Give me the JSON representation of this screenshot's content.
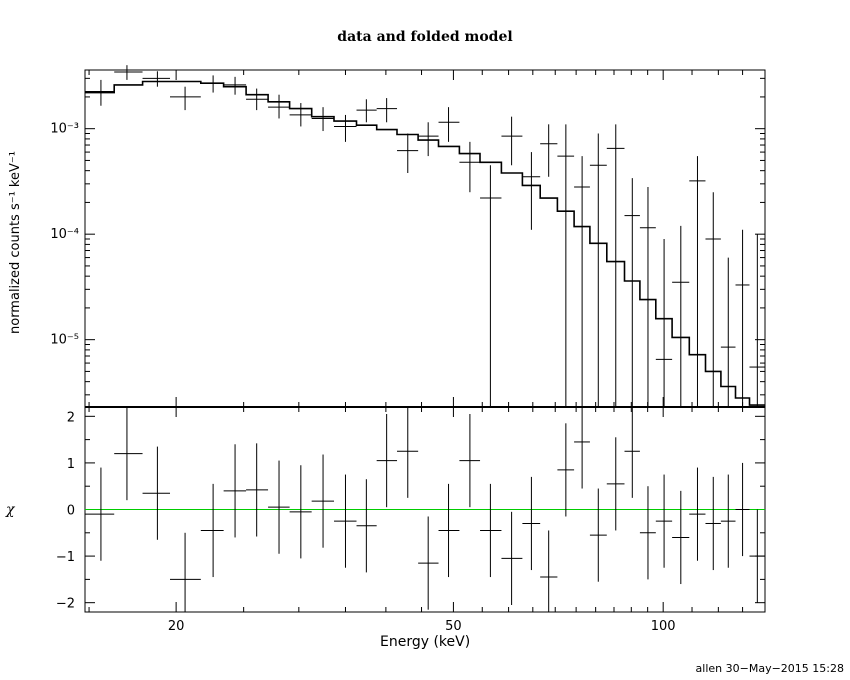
{
  "chart_data": [
    {
      "type": "line",
      "panel": "top",
      "title": "data and folded model",
      "ylabel": "normalized counts s⁻¹ keV⁻¹",
      "xscale": "log",
      "yscale": "log",
      "xlim": [
        14.8,
        140
      ],
      "ylim": [
        2.3e-06,
        0.0036
      ],
      "ytick_labels": [
        "10⁻⁵",
        "10⁻⁴",
        "10⁻³"
      ],
      "ytick_values": [
        1e-05,
        0.0001,
        0.001
      ],
      "series": [
        {
          "kind": "model-step",
          "color": "#000000",
          "edges": [
            14.8,
            16.3,
            17.9,
            19.6,
            21.7,
            23.4,
            25.2,
            27.1,
            29.1,
            31.3,
            33.7,
            36.3,
            38.8,
            41.5,
            44.5,
            47.6,
            51.0,
            54.6,
            58.6,
            62.8,
            66.6,
            70.5,
            74.5,
            78.5,
            83.0,
            88.0,
            92.6,
            97.6,
            103,
            109,
            115,
            121,
            127,
            133,
            140
          ],
          "values": [
            0.0022,
            0.0026,
            0.0028,
            0.0028,
            0.0027,
            0.0025,
            0.0021,
            0.0018,
            0.00155,
            0.0013,
            0.00118,
            0.00108,
            0.00098,
            0.00088,
            0.00078,
            0.00068,
            0.00058,
            0.00048,
            0.00038,
            0.00029,
            0.00022,
            0.000165,
            0.000118,
            8.2e-05,
            5.5e-05,
            3.6e-05,
            2.4e-05,
            1.58e-05,
            1.05e-05,
            7.2e-06,
            5e-06,
            3.6e-06,
            2.8e-06,
            2.4e-06
          ]
        },
        {
          "kind": "data-crosses",
          "color": "#000000",
          "points": [
            {
              "x": 15.6,
              "y": 0.00225,
              "ylo": 0.00165,
              "yhi": 0.0029
            },
            {
              "x": 17.0,
              "y": 0.00345,
              "ylo": 0.0029,
              "yhi": 0.004
            },
            {
              "x": 18.8,
              "y": 0.003,
              "ylo": 0.0025,
              "yhi": 0.0035
            },
            {
              "x": 20.6,
              "y": 0.002,
              "ylo": 0.0015,
              "yhi": 0.0025
            },
            {
              "x": 22.6,
              "y": 0.0027,
              "ylo": 0.0022,
              "yhi": 0.0032
            },
            {
              "x": 24.3,
              "y": 0.0026,
              "ylo": 0.0021,
              "yhi": 0.0031
            },
            {
              "x": 26.1,
              "y": 0.0019,
              "ylo": 0.0015,
              "yhi": 0.0024
            },
            {
              "x": 28.1,
              "y": 0.0016,
              "ylo": 0.00125,
              "yhi": 0.0021
            },
            {
              "x": 30.2,
              "y": 0.00135,
              "ylo": 0.00105,
              "yhi": 0.00175
            },
            {
              "x": 32.5,
              "y": 0.00125,
              "ylo": 0.00095,
              "yhi": 0.0016
            },
            {
              "x": 35.0,
              "y": 0.00105,
              "ylo": 0.00075,
              "yhi": 0.00135
            },
            {
              "x": 37.5,
              "y": 0.0015,
              "ylo": 0.00115,
              "yhi": 0.0019
            },
            {
              "x": 40.1,
              "y": 0.00155,
              "ylo": 0.00115,
              "yhi": 0.00195
            },
            {
              "x": 43.0,
              "y": 0.00062,
              "ylo": 0.00038,
              "yhi": 0.0009
            },
            {
              "x": 46.0,
              "y": 0.00085,
              "ylo": 0.00055,
              "yhi": 0.00115
            },
            {
              "x": 49.2,
              "y": 0.00115,
              "ylo": 0.00075,
              "yhi": 0.0016
            },
            {
              "x": 52.8,
              "y": 0.00048,
              "ylo": 0.00025,
              "yhi": 0.00075
            },
            {
              "x": 56.5,
              "y": 0.00022,
              "ylo": 2.3e-06,
              "yhi": 0.00045
            },
            {
              "x": 60.6,
              "y": 0.00085,
              "ylo": 0.00045,
              "yhi": 0.0013
            },
            {
              "x": 64.7,
              "y": 0.00035,
              "ylo": 0.00011,
              "yhi": 0.0006
            },
            {
              "x": 68.5,
              "y": 0.00072,
              "ylo": 0.00035,
              "yhi": 0.0011
            },
            {
              "x": 72.5,
              "y": 0.00055,
              "ylo": 2.3e-06,
              "yhi": 0.0011
            },
            {
              "x": 76.5,
              "y": 0.00028,
              "ylo": 2.3e-06,
              "yhi": 0.00055
            },
            {
              "x": 80.7,
              "y": 0.00045,
              "ylo": 2.3e-06,
              "yhi": 0.0009
            },
            {
              "x": 85.5,
              "y": 0.00065,
              "ylo": 2.3e-06,
              "yhi": 0.0011
            },
            {
              "x": 90.3,
              "y": 0.00015,
              "ylo": 2.3e-06,
              "yhi": 0.00034
            },
            {
              "x": 95.1,
              "y": 0.000115,
              "ylo": 2.3e-06,
              "yhi": 0.00028
            },
            {
              "x": 100.3,
              "y": 6.5e-06,
              "ylo": 2.3e-06,
              "yhi": 9e-05
            },
            {
              "x": 106.0,
              "y": 3.5e-05,
              "ylo": 2.3e-06,
              "yhi": 0.00012
            },
            {
              "x": 112.0,
              "y": 0.00032,
              "ylo": 2.3e-06,
              "yhi": 0.00055
            },
            {
              "x": 118.0,
              "y": 9e-05,
              "ylo": 2.3e-06,
              "yhi": 0.00025
            },
            {
              "x": 124.0,
              "y": 8.5e-06,
              "ylo": 2.3e-06,
              "yhi": 6e-05
            },
            {
              "x": 130.0,
              "y": 3.3e-05,
              "ylo": 2.3e-06,
              "yhi": 0.00011
            },
            {
              "x": 136.5,
              "y": 5.5e-06,
              "ylo": 2.3e-06,
              "yhi": 0.0001
            }
          ]
        }
      ]
    },
    {
      "type": "scatter",
      "panel": "bottom",
      "ylabel": "χ",
      "xlabel": "Energy (keV)",
      "xscale": "log",
      "xlim": [
        14.8,
        140
      ],
      "ylim": [
        -2.2,
        2.2
      ],
      "xtick_labels": [
        "20",
        "50",
        "100"
      ],
      "xtick_values": [
        20,
        50,
        100
      ],
      "ytick_labels": [
        "−2",
        "−1",
        "0",
        "1",
        "2"
      ],
      "ytick_values": [
        -2,
        -1,
        0,
        1,
        2
      ],
      "reference_line": {
        "y": 0,
        "color": "#00cc00"
      },
      "series": [
        {
          "kind": "residual-crosses",
          "color": "#000000",
          "points": [
            {
              "x": 15.6,
              "y": -0.1,
              "xlo": 14.8,
              "xhi": 16.3
            },
            {
              "x": 17.0,
              "y": 1.2,
              "xlo": 16.3,
              "xhi": 17.9
            },
            {
              "x": 18.8,
              "y": 0.35,
              "xlo": 17.9,
              "xhi": 19.6
            },
            {
              "x": 20.6,
              "y": -1.5,
              "xlo": 19.6,
              "xhi": 21.7
            },
            {
              "x": 22.6,
              "y": -0.45,
              "xlo": 21.7,
              "xhi": 23.4
            },
            {
              "x": 24.3,
              "y": 0.4,
              "xlo": 23.4,
              "xhi": 25.2
            },
            {
              "x": 26.1,
              "y": 0.42,
              "xlo": 25.2,
              "xhi": 27.1
            },
            {
              "x": 28.1,
              "y": 0.05,
              "xlo": 27.1,
              "xhi": 29.1
            },
            {
              "x": 30.2,
              "y": -0.05,
              "xlo": 29.1,
              "xhi": 31.3
            },
            {
              "x": 32.5,
              "y": 0.18,
              "xlo": 31.3,
              "xhi": 33.7
            },
            {
              "x": 35.0,
              "y": -0.25,
              "xlo": 33.7,
              "xhi": 36.3
            },
            {
              "x": 37.5,
              "y": -0.35,
              "xlo": 36.3,
              "xhi": 38.8
            },
            {
              "x": 40.1,
              "y": 1.05,
              "xlo": 38.8,
              "xhi": 41.5
            },
            {
              "x": 43.0,
              "y": 1.25,
              "xlo": 41.5,
              "xhi": 44.5
            },
            {
              "x": 46.0,
              "y": -1.15,
              "xlo": 44.5,
              "xhi": 47.6
            },
            {
              "x": 49.2,
              "y": -0.45,
              "xlo": 47.6,
              "xhi": 51.0
            },
            {
              "x": 52.8,
              "y": 1.05,
              "xlo": 51.0,
              "xhi": 54.6
            },
            {
              "x": 56.5,
              "y": -0.45,
              "xlo": 54.6,
              "xhi": 58.6
            },
            {
              "x": 60.6,
              "y": -1.05,
              "xlo": 58.6,
              "xhi": 62.8
            },
            {
              "x": 64.7,
              "y": -0.3,
              "xlo": 62.8,
              "xhi": 66.6
            },
            {
              "x": 68.5,
              "y": -1.45,
              "xlo": 66.6,
              "xhi": 70.5
            },
            {
              "x": 72.5,
              "y": 0.85,
              "xlo": 70.5,
              "xhi": 74.5
            },
            {
              "x": 76.5,
              "y": 1.45,
              "xlo": 74.5,
              "xhi": 78.5
            },
            {
              "x": 80.7,
              "y": -0.55,
              "xlo": 78.5,
              "xhi": 83.0
            },
            {
              "x": 85.5,
              "y": 0.55,
              "xlo": 83.0,
              "xhi": 88.0
            },
            {
              "x": 90.3,
              "y": 1.25,
              "xlo": 88.0,
              "xhi": 92.6
            },
            {
              "x": 95.1,
              "y": -0.5,
              "xlo": 92.6,
              "xhi": 97.6
            },
            {
              "x": 100.3,
              "y": -0.25,
              "xlo": 97.6,
              "xhi": 103
            },
            {
              "x": 106.0,
              "y": -0.6,
              "xlo": 103,
              "xhi": 109
            },
            {
              "x": 112.0,
              "y": -0.1,
              "xlo": 109,
              "xhi": 115
            },
            {
              "x": 118.0,
              "y": -0.3,
              "xlo": 115,
              "xhi": 121
            },
            {
              "x": 124.0,
              "y": -0.25,
              "xlo": 121,
              "xhi": 127
            },
            {
              "x": 130.0,
              "y": 0.0,
              "xlo": 127,
              "xhi": 133
            },
            {
              "x": 136.5,
              "y": -1.0,
              "xlo": 133,
              "xhi": 140
            }
          ]
        }
      ]
    }
  ],
  "page": {
    "title": "data and folded model",
    "xlabel": "Energy (keV)",
    "ylabel_top": "normalized counts s⁻¹ keV⁻¹",
    "ylabel_bottom": "χ",
    "stamp": "allen 30−May−2015 15:28"
  }
}
